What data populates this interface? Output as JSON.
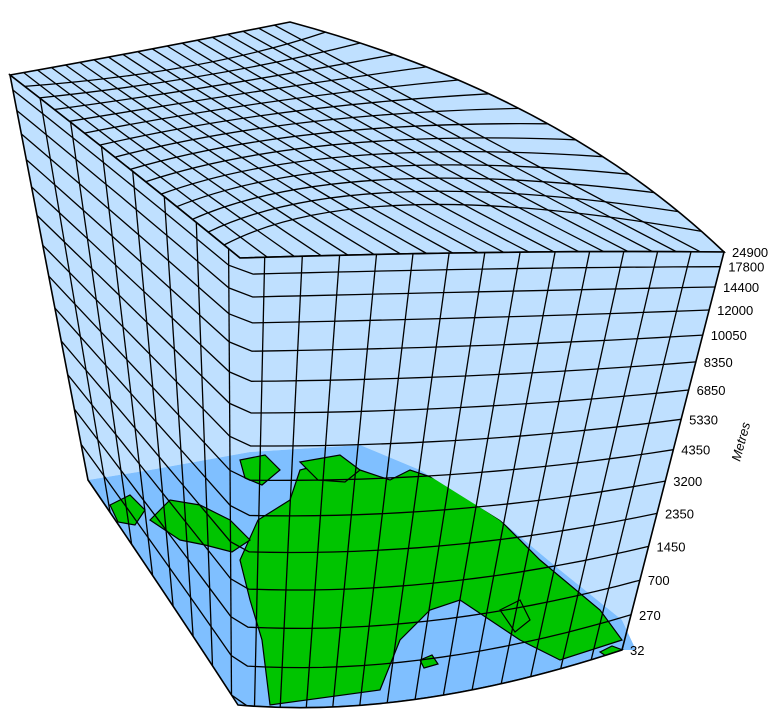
{
  "vertical_axis": {
    "unit_label": "Metres",
    "levels": [
      "24900",
      "17800",
      "14400",
      "12000",
      "10050",
      "8350",
      "6850",
      "5330",
      "4350",
      "3200",
      "2350",
      "1450",
      "700",
      "270",
      "32"
    ]
  },
  "colors": {
    "grid_face": "#bfe0ff",
    "sea": "#7fbfff",
    "land": "#00c400",
    "grid_line": "#000000"
  },
  "grid": {
    "columns": 12,
    "rows": 14,
    "levels": 15
  }
}
